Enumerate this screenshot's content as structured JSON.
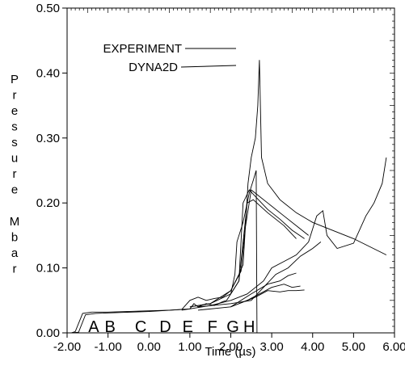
{
  "chart_data": {
    "type": "line",
    "xlabel": "Time (µs)",
    "ylabel": "Pressure Mbar",
    "xlim": [
      -2.0,
      6.0
    ],
    "ylim": [
      0.0,
      0.5
    ],
    "xticks": [
      "-2.00",
      "-1.00",
      "0.00",
      "1.00",
      "2.00",
      "3.00",
      "4.00",
      "5.00",
      "6.00"
    ],
    "xtick_values": [
      -2,
      -1,
      0,
      1,
      2,
      3,
      4,
      5,
      6
    ],
    "yticks": [
      "0.00",
      "0.10",
      "0.20",
      "0.30",
      "0.40",
      "0.50"
    ],
    "ytick_values": [
      0.0,
      0.1,
      0.2,
      0.3,
      0.4,
      0.5
    ],
    "legend": {
      "position": "top-left",
      "entries": [
        "EXPERIMENT",
        "DYNA2D"
      ]
    },
    "gauge_markers": [
      {
        "label": "A",
        "x": -1.35
      },
      {
        "label": "B",
        "x": -0.95
      },
      {
        "label": "C",
        "x": -0.2
      },
      {
        "label": "D",
        "x": 0.4
      },
      {
        "label": "E",
        "x": 0.95
      },
      {
        "label": "F",
        "x": 1.55
      },
      {
        "label": "G",
        "x": 2.05
      },
      {
        "label": "H",
        "x": 2.45
      }
    ],
    "series": [
      {
        "points": [
          [
            -1.9,
            0
          ],
          [
            -1.8,
            0.002
          ],
          [
            -1.62,
            0.03
          ],
          [
            -1.4,
            0.032
          ],
          [
            -1.0,
            0.032
          ],
          [
            0.0,
            0.034
          ],
          [
            0.5,
            0.035
          ],
          [
            1.0,
            0.037
          ],
          [
            1.1,
            0.045
          ],
          [
            1.2,
            0.04
          ],
          [
            1.4,
            0.045
          ],
          [
            1.6,
            0.042
          ],
          [
            1.8,
            0.048
          ],
          [
            1.9,
            0.05
          ],
          [
            2.0,
            0.06
          ],
          [
            2.1,
            0.09
          ],
          [
            2.15,
            0.14
          ],
          [
            2.3,
            0.17
          ],
          [
            2.45,
            0.215
          ],
          [
            2.55,
            0.235
          ],
          [
            2.62,
            0.25
          ],
          [
            2.64,
            0.0
          ]
        ]
      },
      {
        "points": [
          [
            -1.9,
            0
          ],
          [
            -1.72,
            0.001
          ],
          [
            -1.55,
            0.028
          ],
          [
            -1.3,
            0.03
          ],
          [
            0.0,
            0.033
          ],
          [
            0.8,
            0.036
          ],
          [
            1.0,
            0.05
          ],
          [
            1.2,
            0.055
          ],
          [
            1.4,
            0.05
          ],
          [
            1.6,
            0.053
          ],
          [
            1.8,
            0.055
          ],
          [
            2.0,
            0.065
          ],
          [
            2.2,
            0.09
          ],
          [
            2.3,
            0.105
          ],
          [
            2.42,
            0.23
          ],
          [
            2.5,
            0.27
          ],
          [
            2.6,
            0.3
          ],
          [
            2.66,
            0.35
          ],
          [
            2.7,
            0.42
          ],
          [
            2.75,
            0.27
          ],
          [
            2.9,
            0.23
          ],
          [
            3.2,
            0.205
          ],
          [
            3.6,
            0.185
          ],
          [
            4.0,
            0.17
          ],
          [
            5.0,
            0.145
          ],
          [
            5.8,
            0.12
          ]
        ]
      },
      {
        "points": [
          [
            1.0,
            0.04
          ],
          [
            1.5,
            0.045
          ],
          [
            2.0,
            0.06
          ],
          [
            2.2,
            0.08
          ],
          [
            2.3,
            0.2
          ],
          [
            2.45,
            0.22
          ],
          [
            2.6,
            0.21
          ],
          [
            2.9,
            0.19
          ],
          [
            3.2,
            0.175
          ],
          [
            3.5,
            0.158
          ],
          [
            3.8,
            0.145
          ]
        ]
      },
      {
        "points": [
          [
            1.0,
            0.04
          ],
          [
            1.5,
            0.045
          ],
          [
            2.0,
            0.065
          ],
          [
            2.25,
            0.095
          ],
          [
            2.35,
            0.16
          ],
          [
            2.5,
            0.22
          ],
          [
            2.6,
            0.215
          ],
          [
            2.9,
            0.2
          ],
          [
            3.3,
            0.18
          ],
          [
            3.7,
            0.16
          ],
          [
            3.9,
            0.15
          ]
        ]
      },
      {
        "points": [
          [
            2.0,
            0.06
          ],
          [
            2.2,
            0.08
          ],
          [
            2.3,
            0.14
          ],
          [
            2.4,
            0.2
          ],
          [
            2.55,
            0.205
          ],
          [
            2.9,
            0.185
          ],
          [
            3.3,
            0.165
          ],
          [
            3.6,
            0.145
          ]
        ]
      },
      {
        "points": [
          [
            0.8,
            0.035
          ],
          [
            1.5,
            0.042
          ],
          [
            2.0,
            0.05
          ],
          [
            2.4,
            0.06
          ],
          [
            2.8,
            0.08
          ],
          [
            3.0,
            0.1
          ],
          [
            3.3,
            0.11
          ],
          [
            3.6,
            0.12
          ],
          [
            3.9,
            0.14
          ],
          [
            4.1,
            0.18
          ],
          [
            4.25,
            0.188
          ],
          [
            4.35,
            0.15
          ],
          [
            4.6,
            0.13
          ],
          [
            5.0,
            0.138
          ],
          [
            5.3,
            0.18
          ],
          [
            5.5,
            0.2
          ],
          [
            5.7,
            0.23
          ],
          [
            5.8,
            0.27
          ]
        ]
      },
      {
        "points": [
          [
            1.2,
            0.04
          ],
          [
            2.0,
            0.045
          ],
          [
            2.5,
            0.05
          ],
          [
            2.8,
            0.07
          ],
          [
            3.1,
            0.09
          ],
          [
            3.4,
            0.1
          ],
          [
            3.7,
            0.118
          ],
          [
            4.0,
            0.13
          ],
          [
            4.2,
            0.14
          ]
        ]
      },
      {
        "points": [
          [
            1.2,
            0.035
          ],
          [
            2.0,
            0.04
          ],
          [
            2.5,
            0.06
          ],
          [
            2.9,
            0.075
          ],
          [
            3.2,
            0.08
          ],
          [
            3.4,
            0.088
          ],
          [
            3.6,
            0.092
          ]
        ]
      },
      {
        "points": [
          [
            2.0,
            0.04
          ],
          [
            2.4,
            0.05
          ],
          [
            2.7,
            0.06
          ],
          [
            3.0,
            0.07
          ],
          [
            3.3,
            0.075
          ],
          [
            3.5,
            0.07
          ],
          [
            3.7,
            0.072
          ]
        ]
      },
      {
        "points": [
          [
            2.2,
            0.045
          ],
          [
            2.6,
            0.055
          ],
          [
            2.9,
            0.065
          ],
          [
            3.2,
            0.063
          ],
          [
            3.4,
            0.065
          ],
          [
            3.6,
            0.065
          ],
          [
            3.8,
            0.066
          ]
        ]
      }
    ]
  }
}
